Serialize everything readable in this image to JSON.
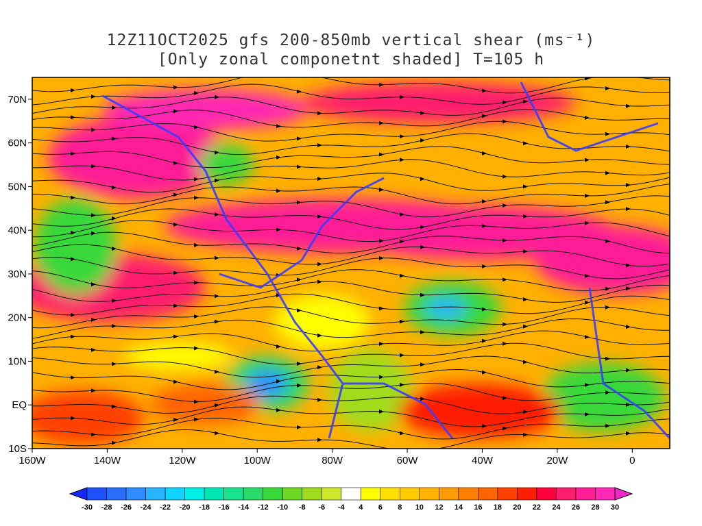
{
  "title": {
    "line1": "12Z11OCT2025 gfs 200-850mb vertical shear (ms⁻¹)",
    "line2": "[Only zonal componetnt shaded] T=105 h"
  },
  "axes": {
    "lat_labels": [
      "70N",
      "60N",
      "50N",
      "40N",
      "30N",
      "20N",
      "10N",
      "EQ",
      "10S"
    ],
    "lat_values": [
      70,
      60,
      50,
      40,
      30,
      20,
      10,
      0,
      -10
    ],
    "lon_labels": [
      "160W",
      "140W",
      "120W",
      "100W",
      "80W",
      "60W",
      "40W",
      "20W",
      "0"
    ],
    "lon_values": [
      -160,
      -140,
      -120,
      -100,
      -80,
      -60,
      -40,
      -20,
      0
    ],
    "lon_range": [
      -160,
      10
    ],
    "lat_range": [
      -10,
      75
    ]
  },
  "colorbar": {
    "labels": [
      "-30",
      "-28",
      "-26",
      "-24",
      "-22",
      "-20",
      "-18",
      "-16",
      "-14",
      "-12",
      "-10",
      "-8",
      "-6",
      "-4",
      "4",
      "6",
      "8",
      "10",
      "12",
      "14",
      "16",
      "18",
      "20",
      "22",
      "24",
      "26",
      "28",
      "30"
    ],
    "colors": [
      "#1428ff",
      "#1e50ff",
      "#2a6eff",
      "#2f8cff",
      "#28b4ff",
      "#10d4ff",
      "#00f0e8",
      "#00e6b4",
      "#19e38c",
      "#28dc6a",
      "#38d83a",
      "#6ed824",
      "#a0dc1c",
      "#cfe82a",
      "#ffffff",
      "#ffff00",
      "#ffe000",
      "#ffcc00",
      "#ffb400",
      "#ff9c00",
      "#ff8000",
      "#ff6400",
      "#ff4000",
      "#ff1e00",
      "#ff003c",
      "#ff1e6e",
      "#ff1e96",
      "#ff28b4",
      "#f028c8"
    ]
  }
}
